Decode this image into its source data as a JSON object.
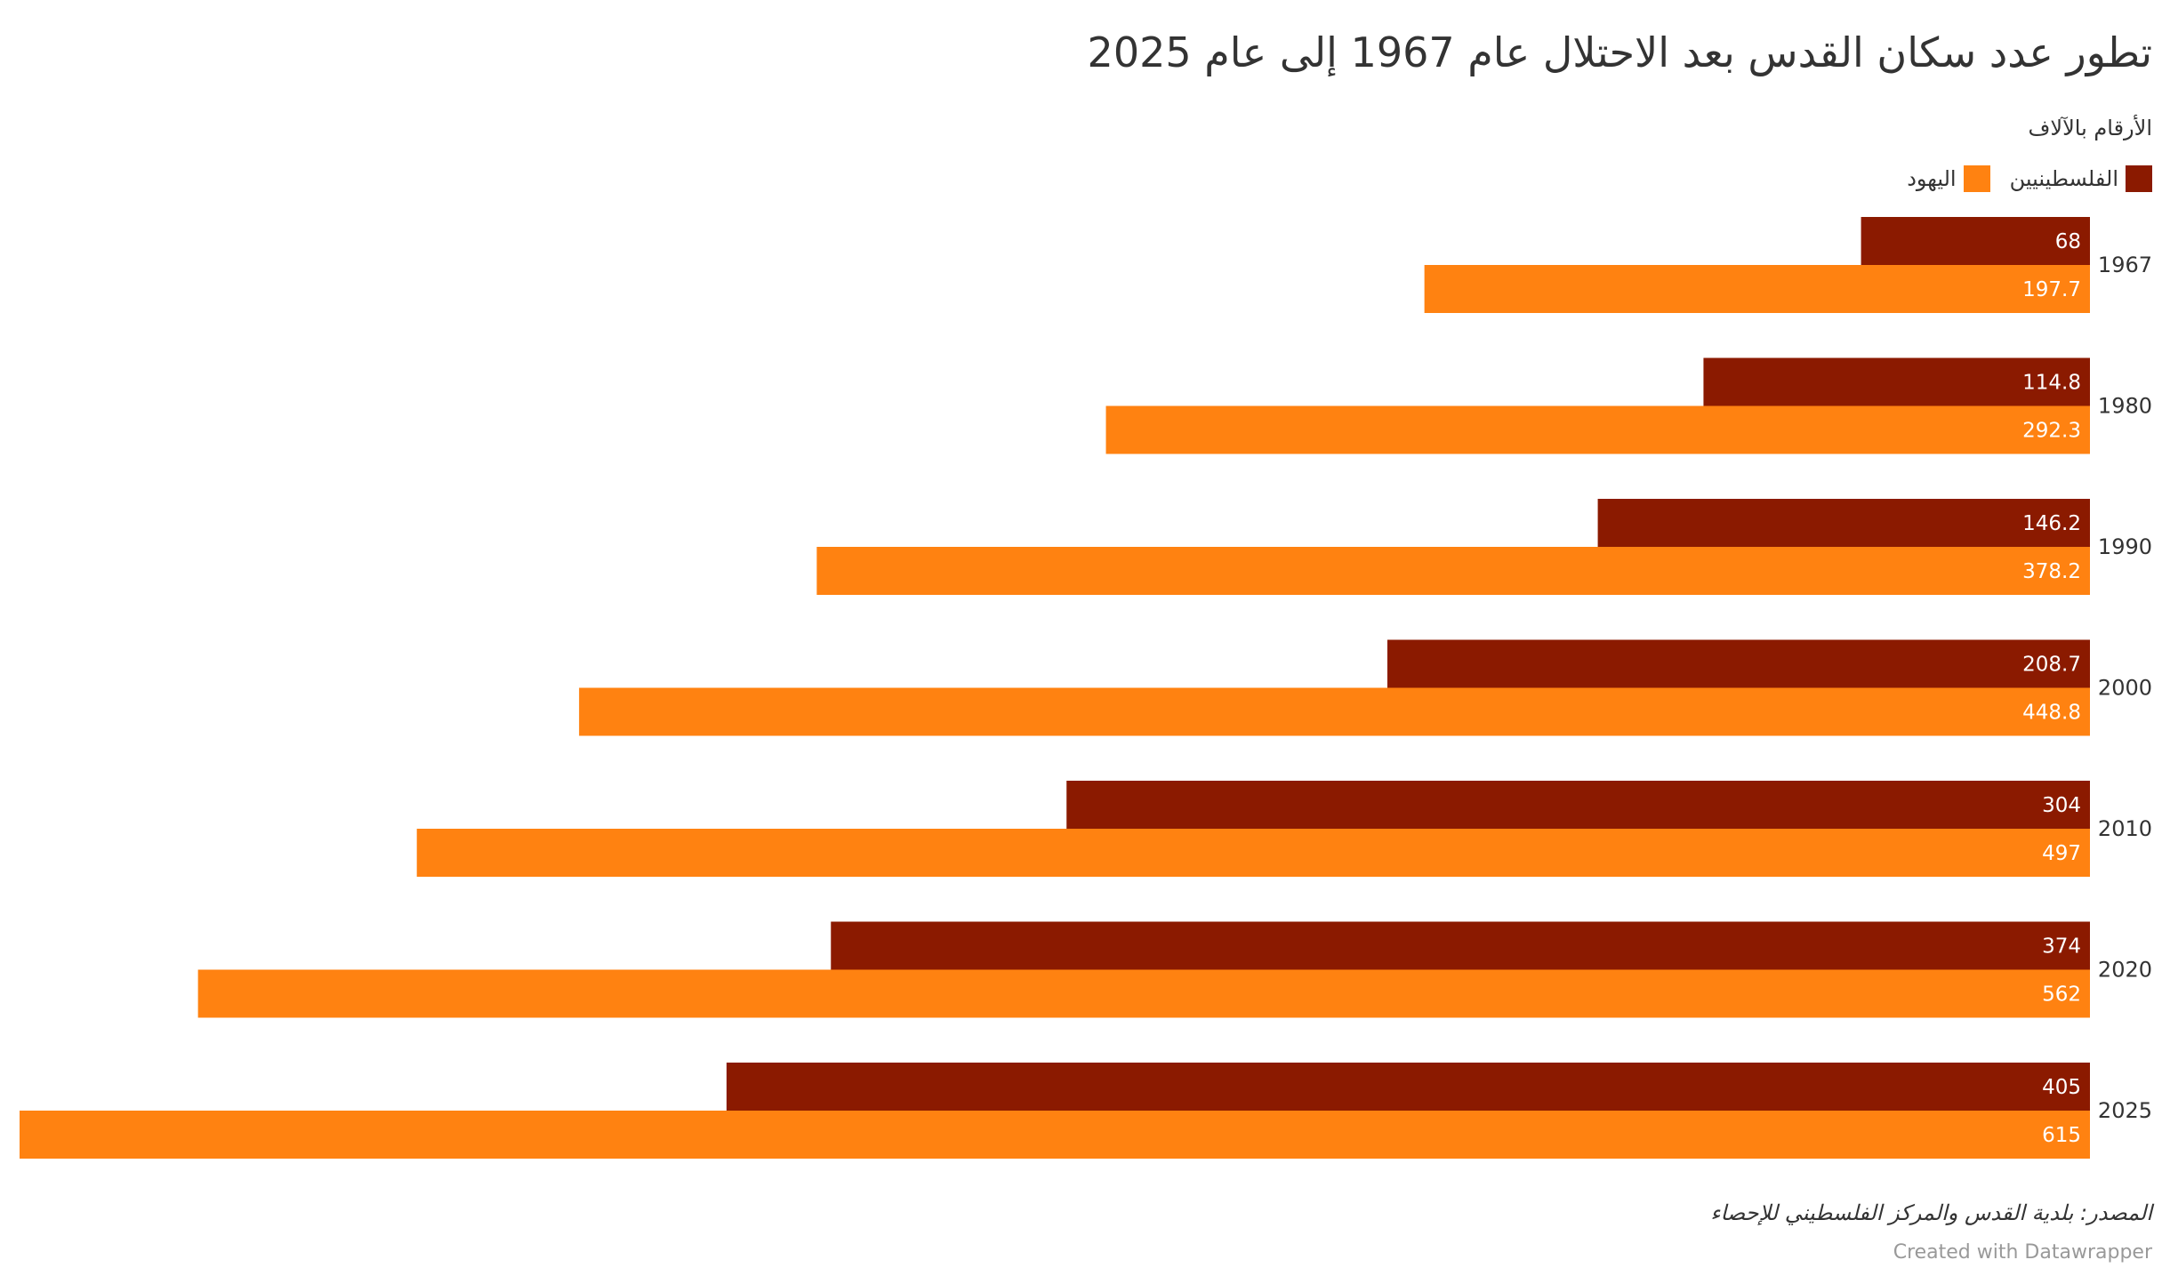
{
  "title": "تطور عدد سكان القدس بعد الاحتلال عام 1967 إلى عام 2025",
  "subtitle": "الأرقام بالآلاف",
  "legend": [
    {
      "label": "الفلسطينيين",
      "color": "#8b1a00"
    },
    {
      "label": "اليهود",
      "color": "#ff8211"
    }
  ],
  "chart_data": {
    "type": "bar",
    "orientation": "horizontal",
    "categories": [
      "1967",
      "1980",
      "1990",
      "2000",
      "2010",
      "2020",
      "2025"
    ],
    "series": [
      {
        "name": "الفلسطينيين",
        "color": "#8b1a00",
        "values": [
          68,
          114.8,
          146.2,
          208.7,
          304,
          374,
          405
        ]
      },
      {
        "name": "اليهود",
        "color": "#ff8211",
        "values": [
          197.7,
          292.3,
          378.2,
          448.8,
          497,
          562,
          615
        ]
      }
    ],
    "value_labels": [
      [
        "68",
        "114.8",
        "146.2",
        "208.7",
        "304",
        "374",
        "405"
      ],
      [
        "197.7",
        "292.3",
        "378.2",
        "448.8",
        "497",
        "562",
        "615"
      ]
    ],
    "xlim": [
      0,
      615
    ],
    "grid": false,
    "legend_position": "top-right"
  },
  "source_note": "المصدر: بلدية القدس والمركز الفلسطيني للإحصاء",
  "credit": "Created with Datawrapper"
}
